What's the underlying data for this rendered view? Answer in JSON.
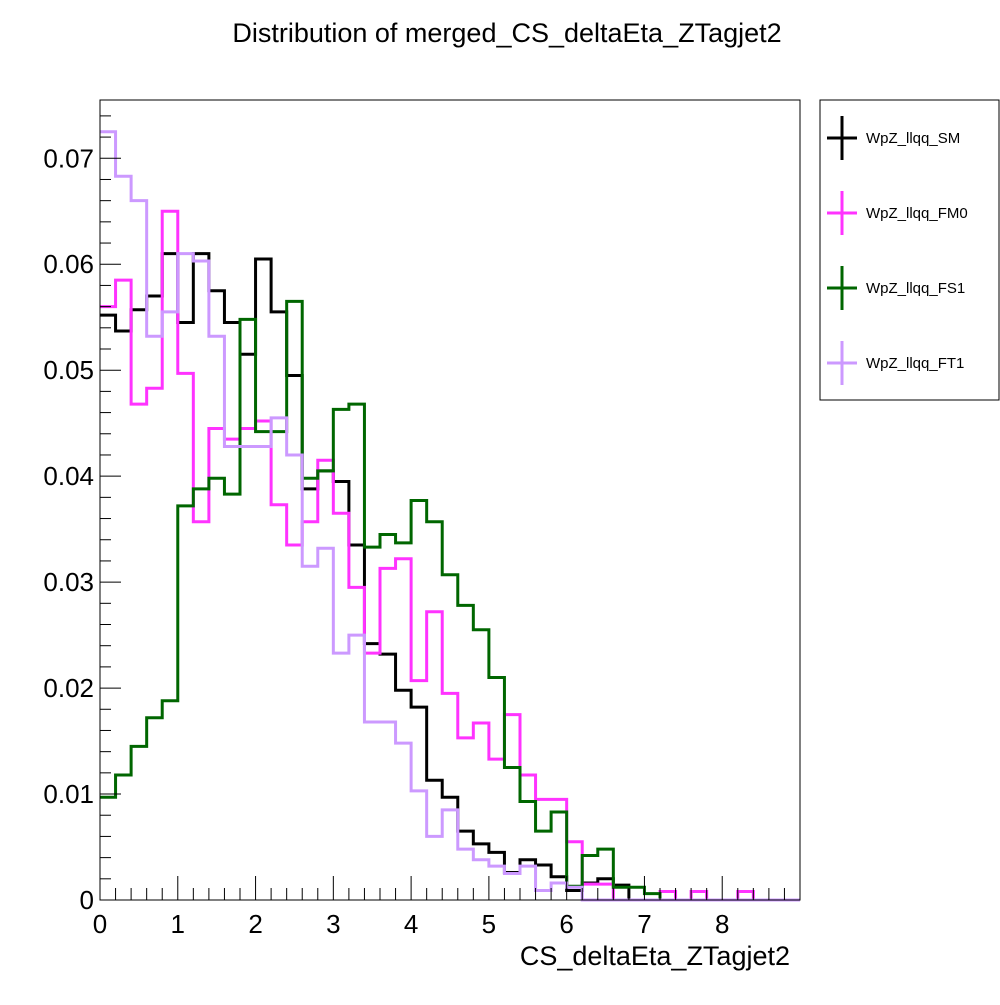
{
  "chart_data": {
    "type": "line",
    "title": "Distribution of merged_CS_deltaEta_ZTagjet2",
    "xlabel": "CS_deltaEta_ZTagjet2",
    "ylabel": "",
    "xlim": [
      0,
      9
    ],
    "ylim": [
      0,
      0.0755
    ],
    "x_ticks": [
      0,
      1,
      2,
      3,
      4,
      5,
      6,
      7,
      8
    ],
    "x_tick_labels": [
      "0",
      "1",
      "2",
      "3",
      "4",
      "5",
      "6",
      "7",
      "8"
    ],
    "y_ticks": [
      0,
      0.01,
      0.02,
      0.03,
      0.04,
      0.05,
      0.06,
      0.07
    ],
    "y_tick_labels": [
      "0",
      "0.01",
      "0.02",
      "0.03",
      "0.04",
      "0.05",
      "0.06",
      "0.07"
    ],
    "bin_edges": [
      0,
      0.2,
      0.4,
      0.6,
      0.8,
      1.0,
      1.2,
      1.4,
      1.6,
      1.8,
      2.0,
      2.2,
      2.4,
      2.6,
      2.8,
      3.0,
      3.2,
      3.4,
      3.6,
      3.8,
      4.0,
      4.2,
      4.4,
      4.6,
      4.8,
      5.0,
      5.2,
      5.4,
      5.6,
      5.8,
      6.0,
      6.2,
      6.4,
      6.6,
      6.8,
      7.0,
      7.2,
      7.4,
      7.6,
      7.8,
      8.0,
      8.2,
      8.4,
      8.6,
      8.8,
      9.0
    ],
    "grid": false,
    "legend_position": "outside-right-top",
    "series": [
      {
        "name": "WpZ_llqq_SM",
        "color": "#000000",
        "values": [
          0.0552,
          0.0537,
          0.0557,
          0.057,
          0.061,
          0.0545,
          0.061,
          0.0575,
          0.0545,
          0.0515,
          0.0605,
          0.0555,
          0.0495,
          0.0388,
          0.0405,
          0.0395,
          0.0335,
          0.0242,
          0.0232,
          0.0198,
          0.0182,
          0.0113,
          0.0097,
          0.0065,
          0.0053,
          0.0045,
          0.0026,
          0.0038,
          0.0033,
          0.0022,
          0.0009,
          0.0016,
          0.002,
          0.0014,
          0.0,
          0.0,
          0.0,
          0.0,
          0.0,
          0.0,
          0.0,
          0.0,
          0.0,
          0.0,
          0.0
        ]
      },
      {
        "name": "WpZ_llqq_FM0",
        "color": "#ff33ff",
        "values": [
          0.056,
          0.0585,
          0.0468,
          0.0483,
          0.065,
          0.0497,
          0.0357,
          0.0445,
          0.0435,
          0.0445,
          0.0452,
          0.0373,
          0.0335,
          0.0357,
          0.0415,
          0.0365,
          0.0295,
          0.0233,
          0.0313,
          0.0322,
          0.0207,
          0.0272,
          0.0195,
          0.0153,
          0.0167,
          0.0133,
          0.0175,
          0.0118,
          0.0095,
          0.0095,
          0.0055,
          0.0015,
          0.0015,
          0.0,
          0.0,
          0.0,
          0.0008,
          0.0,
          0.0008,
          0.0,
          0.0,
          0.0008,
          0.0,
          0.0,
          0.0
        ]
      },
      {
        "name": "WpZ_llqq_FS1",
        "color": "#006600",
        "values": [
          0.0097,
          0.0118,
          0.0145,
          0.0172,
          0.0188,
          0.0372,
          0.0388,
          0.0398,
          0.0383,
          0.0548,
          0.0442,
          0.0442,
          0.0565,
          0.0398,
          0.0405,
          0.0463,
          0.0468,
          0.0333,
          0.0345,
          0.0337,
          0.0377,
          0.0357,
          0.0307,
          0.0278,
          0.0255,
          0.021,
          0.0125,
          0.0093,
          0.0065,
          0.0083,
          0.0013,
          0.0042,
          0.0048,
          0.0012,
          0.0012,
          0.0006,
          0.0,
          0.0,
          0.0,
          0.0,
          0.0,
          0.0,
          0.0,
          0.0,
          0.0
        ]
      },
      {
        "name": "WpZ_llqq_FT1",
        "color": "#cc99ff",
        "values": [
          0.0725,
          0.0683,
          0.066,
          0.0532,
          0.0555,
          0.061,
          0.0603,
          0.0532,
          0.0428,
          0.0428,
          0.0428,
          0.0455,
          0.042,
          0.0315,
          0.0332,
          0.0233,
          0.025,
          0.0168,
          0.0168,
          0.0148,
          0.0103,
          0.006,
          0.0085,
          0.0048,
          0.0038,
          0.0032,
          0.0025,
          0.0032,
          0.0009,
          0.0016,
          0.0012,
          0.0,
          0.0,
          0.0,
          0.0,
          0.0,
          0.0,
          0.0,
          0.0,
          0.0,
          0.0,
          0.0,
          0.0,
          0.0,
          0.0
        ]
      }
    ]
  }
}
